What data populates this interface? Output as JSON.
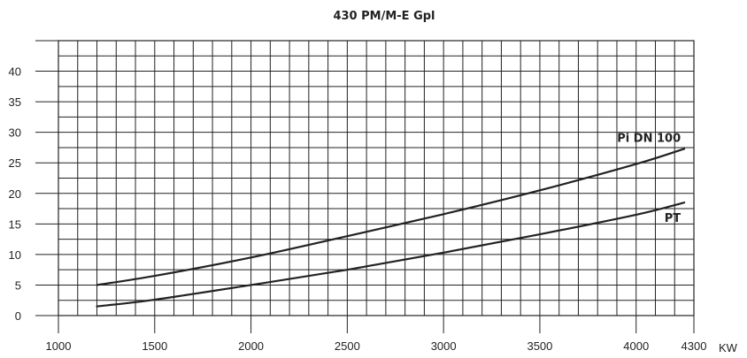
{
  "chart_data": {
    "type": "line",
    "title": "430 PM/M-E Gpl",
    "xlabel": "KW",
    "ylabel": "",
    "xlim": [
      1000,
      4300
    ],
    "ylim": [
      0,
      45
    ],
    "x_ticks": [
      "1000",
      "1500",
      "2000",
      "2500",
      "3000",
      "3500",
      "4000",
      "4300"
    ],
    "x_tick_values": [
      1000,
      1500,
      2000,
      2500,
      3000,
      3500,
      4000,
      4300
    ],
    "y_ticks": [
      "0",
      "5",
      "10",
      "15",
      "20",
      "25",
      "30",
      "35",
      "40"
    ],
    "y_tick_values": [
      0,
      5,
      10,
      15,
      20,
      25,
      30,
      35,
      40
    ],
    "grid": true,
    "series": [
      {
        "name": "Pi DN 100",
        "x": [
          1200,
          1500,
          2000,
          2500,
          3000,
          3500,
          4000,
          4250
        ],
        "values": [
          5,
          6.5,
          9.5,
          13,
          16.6,
          20.5,
          24.8,
          27.3
        ]
      },
      {
        "name": "PT",
        "x": [
          1200,
          1500,
          2000,
          2500,
          3000,
          3500,
          4000,
          4250
        ],
        "values": [
          1.5,
          2.6,
          5,
          7.5,
          10.3,
          13.3,
          16.5,
          18.5
        ]
      }
    ],
    "colors": {
      "line": "#222222",
      "grid": "#222222",
      "text": "#222222"
    }
  }
}
